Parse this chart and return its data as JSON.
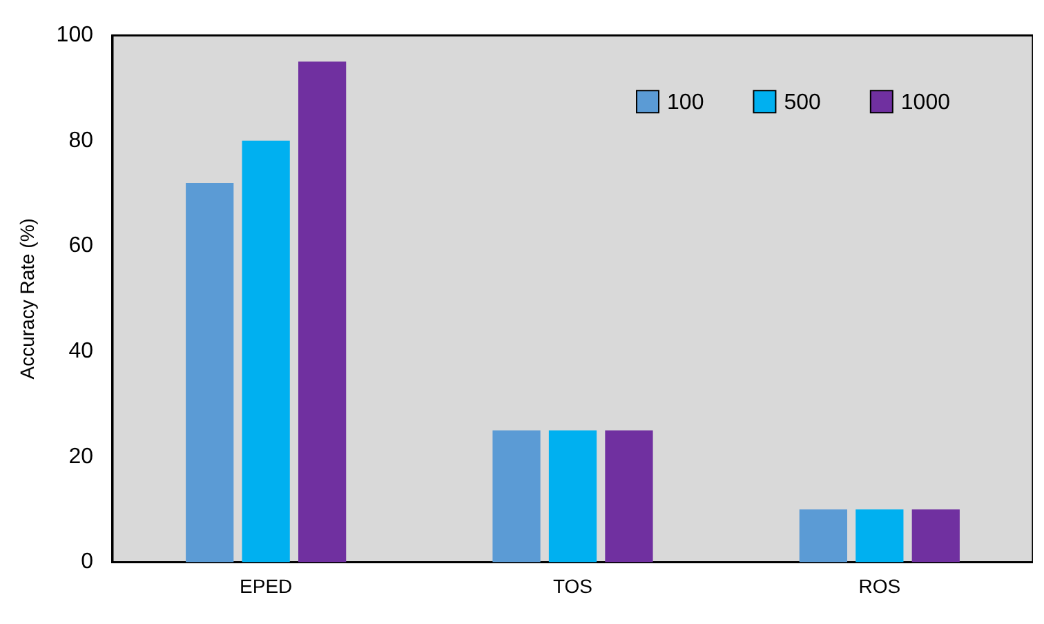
{
  "chart_data": {
    "type": "bar",
    "ylabel": "Accuracy Rate (%)",
    "categories": [
      "EPED",
      "TOS",
      "ROS"
    ],
    "series": [
      {
        "name": "100",
        "color": "#5b9bd5",
        "values": [
          72,
          25,
          10
        ]
      },
      {
        "name": "500",
        "color": "#00b0f0",
        "values": [
          80,
          25,
          10
        ]
      },
      {
        "name": "1000",
        "color": "#7030a0",
        "values": [
          95,
          25,
          10
        ]
      }
    ],
    "ylim": [
      0,
      100
    ],
    "yticks": [
      0,
      20,
      40,
      60,
      80,
      100
    ],
    "grid": false,
    "legend": "top right"
  }
}
